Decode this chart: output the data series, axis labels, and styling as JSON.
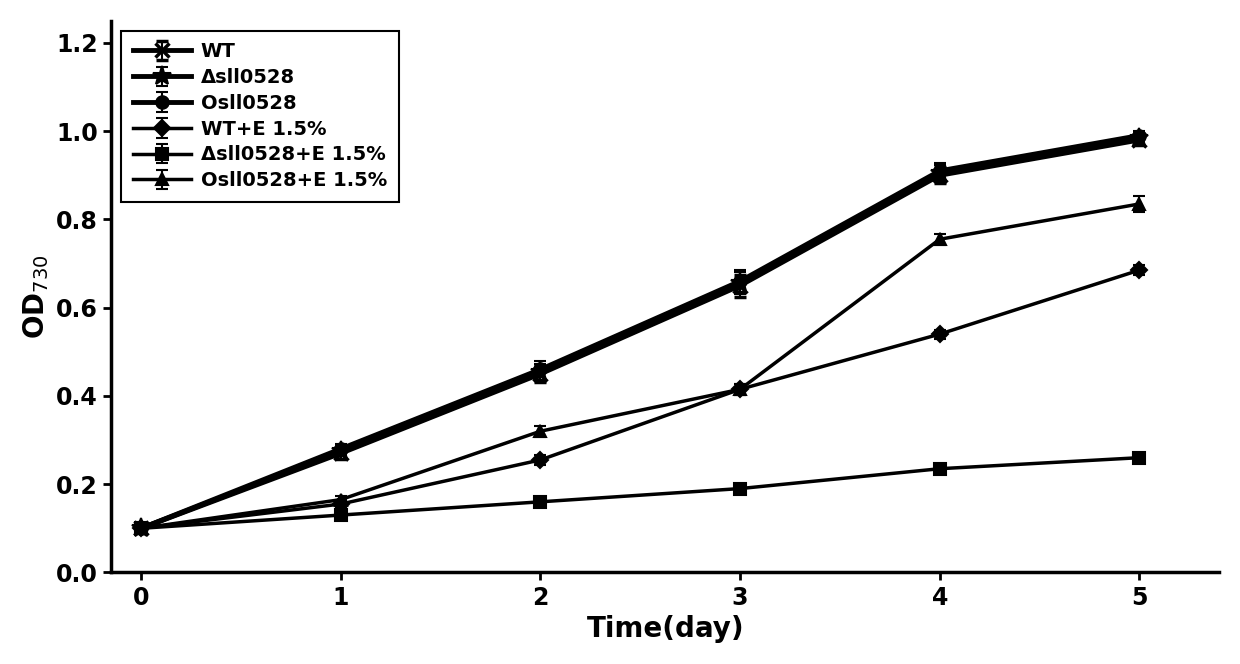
{
  "x": [
    0,
    1,
    2,
    3,
    4,
    5
  ],
  "series": [
    {
      "label": "WT",
      "y": [
        0.1,
        0.27,
        0.45,
        0.65,
        0.9,
        0.98
      ],
      "yerr": [
        0.005,
        0.012,
        0.018,
        0.025,
        0.018,
        0.012
      ],
      "marker": "x",
      "linewidth": 3.5,
      "markersize": 10,
      "markeredgewidth": 2.5,
      "color": "#000000",
      "filled": false
    },
    {
      "label": "Δsll0528",
      "y": [
        0.1,
        0.275,
        0.455,
        0.655,
        0.905,
        0.985
      ],
      "yerr": [
        0.005,
        0.012,
        0.018,
        0.025,
        0.018,
        0.01
      ],
      "marker": "*",
      "linewidth": 3.5,
      "markersize": 14,
      "markeredgewidth": 1.5,
      "color": "#000000",
      "filled": true
    },
    {
      "label": "Osll0528",
      "y": [
        0.1,
        0.28,
        0.46,
        0.66,
        0.91,
        0.99
      ],
      "yerr": [
        0.005,
        0.012,
        0.018,
        0.025,
        0.018,
        0.01
      ],
      "marker": "o",
      "linewidth": 3.5,
      "markersize": 9,
      "markeredgewidth": 1.5,
      "color": "#000000",
      "filled": true
    },
    {
      "label": "WT+E 1.5%",
      "y": [
        0.1,
        0.155,
        0.255,
        0.415,
        0.54,
        0.685
      ],
      "yerr": [
        0.005,
        0.008,
        0.012,
        0.012,
        0.01,
        0.012
      ],
      "marker": "D",
      "linewidth": 2.5,
      "markersize": 8,
      "markeredgewidth": 1.5,
      "color": "#000000",
      "filled": true
    },
    {
      "label": "Δsll0528+E 1.5%",
      "y": [
        0.1,
        0.13,
        0.16,
        0.19,
        0.235,
        0.26
      ],
      "yerr": [
        0.005,
        0.008,
        0.007,
        0.008,
        0.008,
        0.008
      ],
      "marker": "s",
      "linewidth": 2.5,
      "markersize": 8,
      "markeredgewidth": 1.5,
      "color": "#000000",
      "filled": true
    },
    {
      "label": "Osll0528+E 1.5%",
      "y": [
        0.1,
        0.165,
        0.32,
        0.415,
        0.755,
        0.835
      ],
      "yerr": [
        0.005,
        0.008,
        0.012,
        0.012,
        0.012,
        0.018
      ],
      "marker": "^",
      "linewidth": 2.5,
      "markersize": 8,
      "markeredgewidth": 1.5,
      "color": "#000000",
      "filled": true
    }
  ],
  "xlabel": "Time(day)",
  "ylabel": "OD$_{730}$",
  "xlim": [
    -0.15,
    5.4
  ],
  "ylim": [
    0,
    1.25
  ],
  "yticks": [
    0,
    0.2,
    0.4,
    0.6,
    0.8,
    1.0,
    1.2
  ],
  "xticks": [
    0,
    1,
    2,
    3,
    4,
    5
  ],
  "legend_loc": "upper left",
  "axis_fontsize": 20,
  "tick_fontsize": 17,
  "legend_fontsize": 14,
  "background_color": "#ffffff"
}
